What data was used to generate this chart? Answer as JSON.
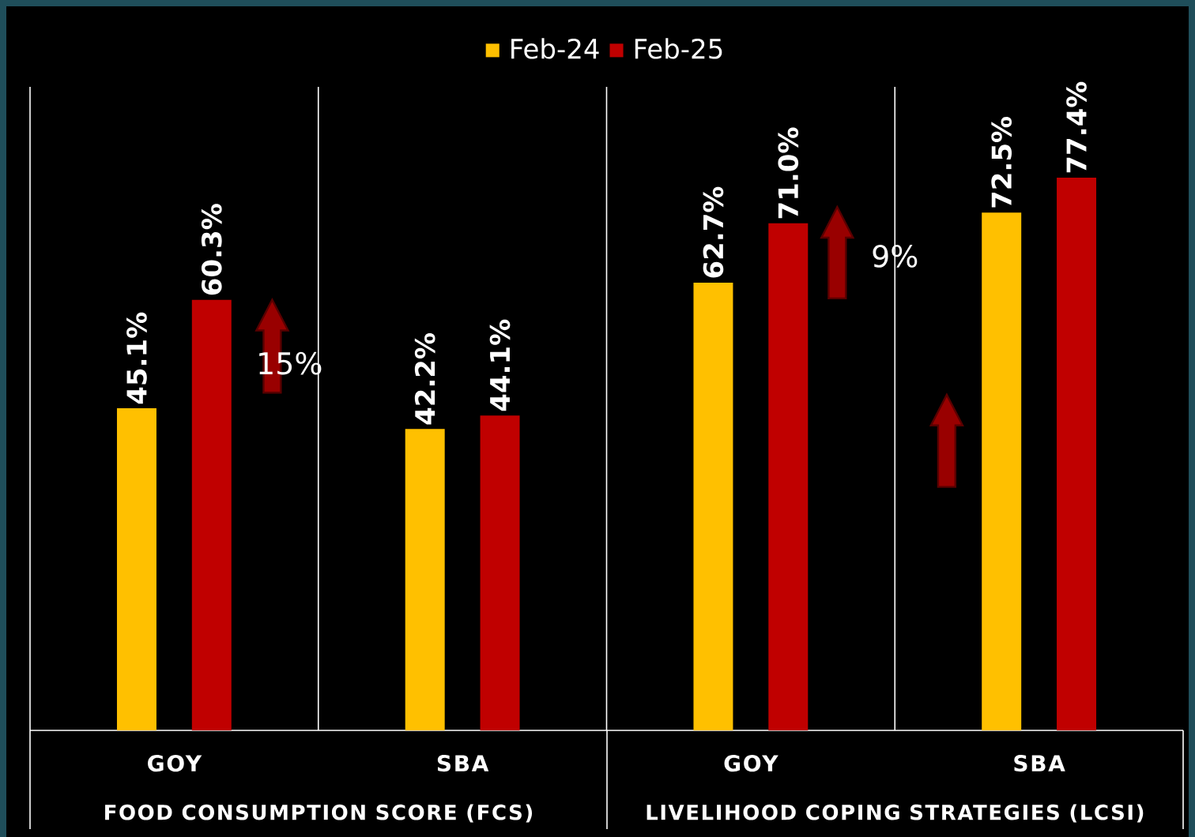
{
  "chart_data": {
    "type": "bar",
    "categories": [
      "GOY",
      "SBA",
      "GOY",
      "SBA"
    ],
    "series": [
      {
        "name": "Feb-24",
        "color": "#ffc000",
        "values": [
          45.1,
          42.2,
          62.7,
          72.5
        ],
        "value_labels": [
          "45.1%",
          "42.2%",
          "62.7%",
          "72.5%"
        ]
      },
      {
        "name": "Feb-25",
        "color": "#c00000",
        "values": [
          60.3,
          44.1,
          71.0,
          77.4
        ],
        "value_labels": [
          "60.3%",
          "44.1%",
          "71.0%",
          "77.4%"
        ]
      }
    ],
    "annotations": [
      "15%",
      "9%",
      "FOOD CONSUMPTION SCORE (FCS)",
      "LIVELIHOOD COPING STRATEGIES (LCSI)"
    ],
    "legend": "top"
  }
}
